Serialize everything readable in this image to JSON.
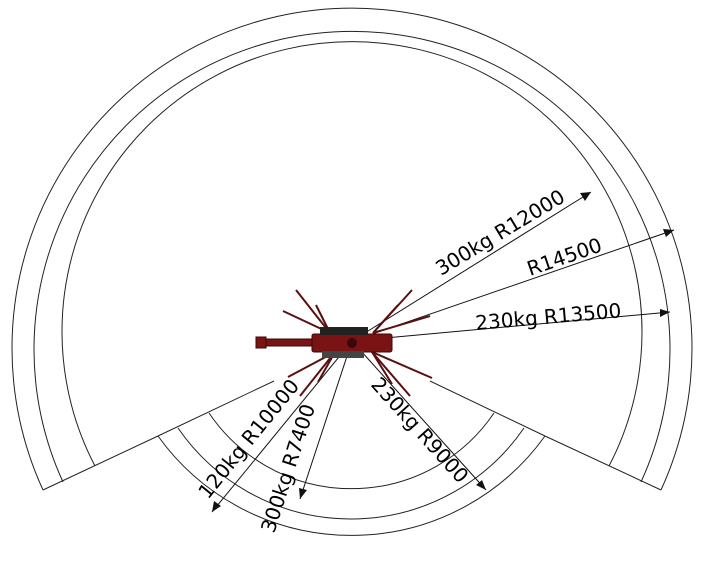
{
  "diagram": {
    "labels": {
      "r12000": "300kg R12000",
      "r14500": "R14500",
      "r13500": "230kg R13500",
      "r10000": "120kg R10000",
      "r7400": "300kg R7400",
      "r9000": "230kg R9000"
    },
    "colors": {
      "line": "#222222",
      "crane": "#7a1414",
      "background": "#ffffff"
    }
  }
}
